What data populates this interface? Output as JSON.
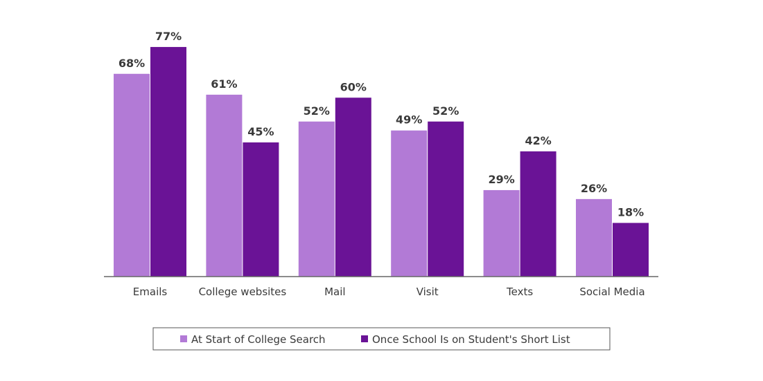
{
  "chart_data": {
    "type": "bar",
    "title": "",
    "xlabel": "",
    "ylabel": "",
    "ylim": [
      0,
      80
    ],
    "grid": false,
    "legend_position": "bottom",
    "categories": [
      "Emails",
      "College websites",
      "Mail",
      "Visit",
      "Texts",
      "Social Media"
    ],
    "series": [
      {
        "name": "At Start of College Search",
        "color": "#b27ad6",
        "values": [
          68,
          61,
          52,
          49,
          29,
          26
        ],
        "labels": [
          "68%",
          "61%",
          "52%",
          "49%",
          "29%",
          "26%"
        ]
      },
      {
        "name": "Once School Is on Student's Short List",
        "color": "#6a1396",
        "values": [
          77,
          45,
          60,
          52,
          42,
          18
        ],
        "labels": [
          "77%",
          "45%",
          "60%",
          "52%",
          "42%",
          "18%"
        ]
      }
    ]
  }
}
